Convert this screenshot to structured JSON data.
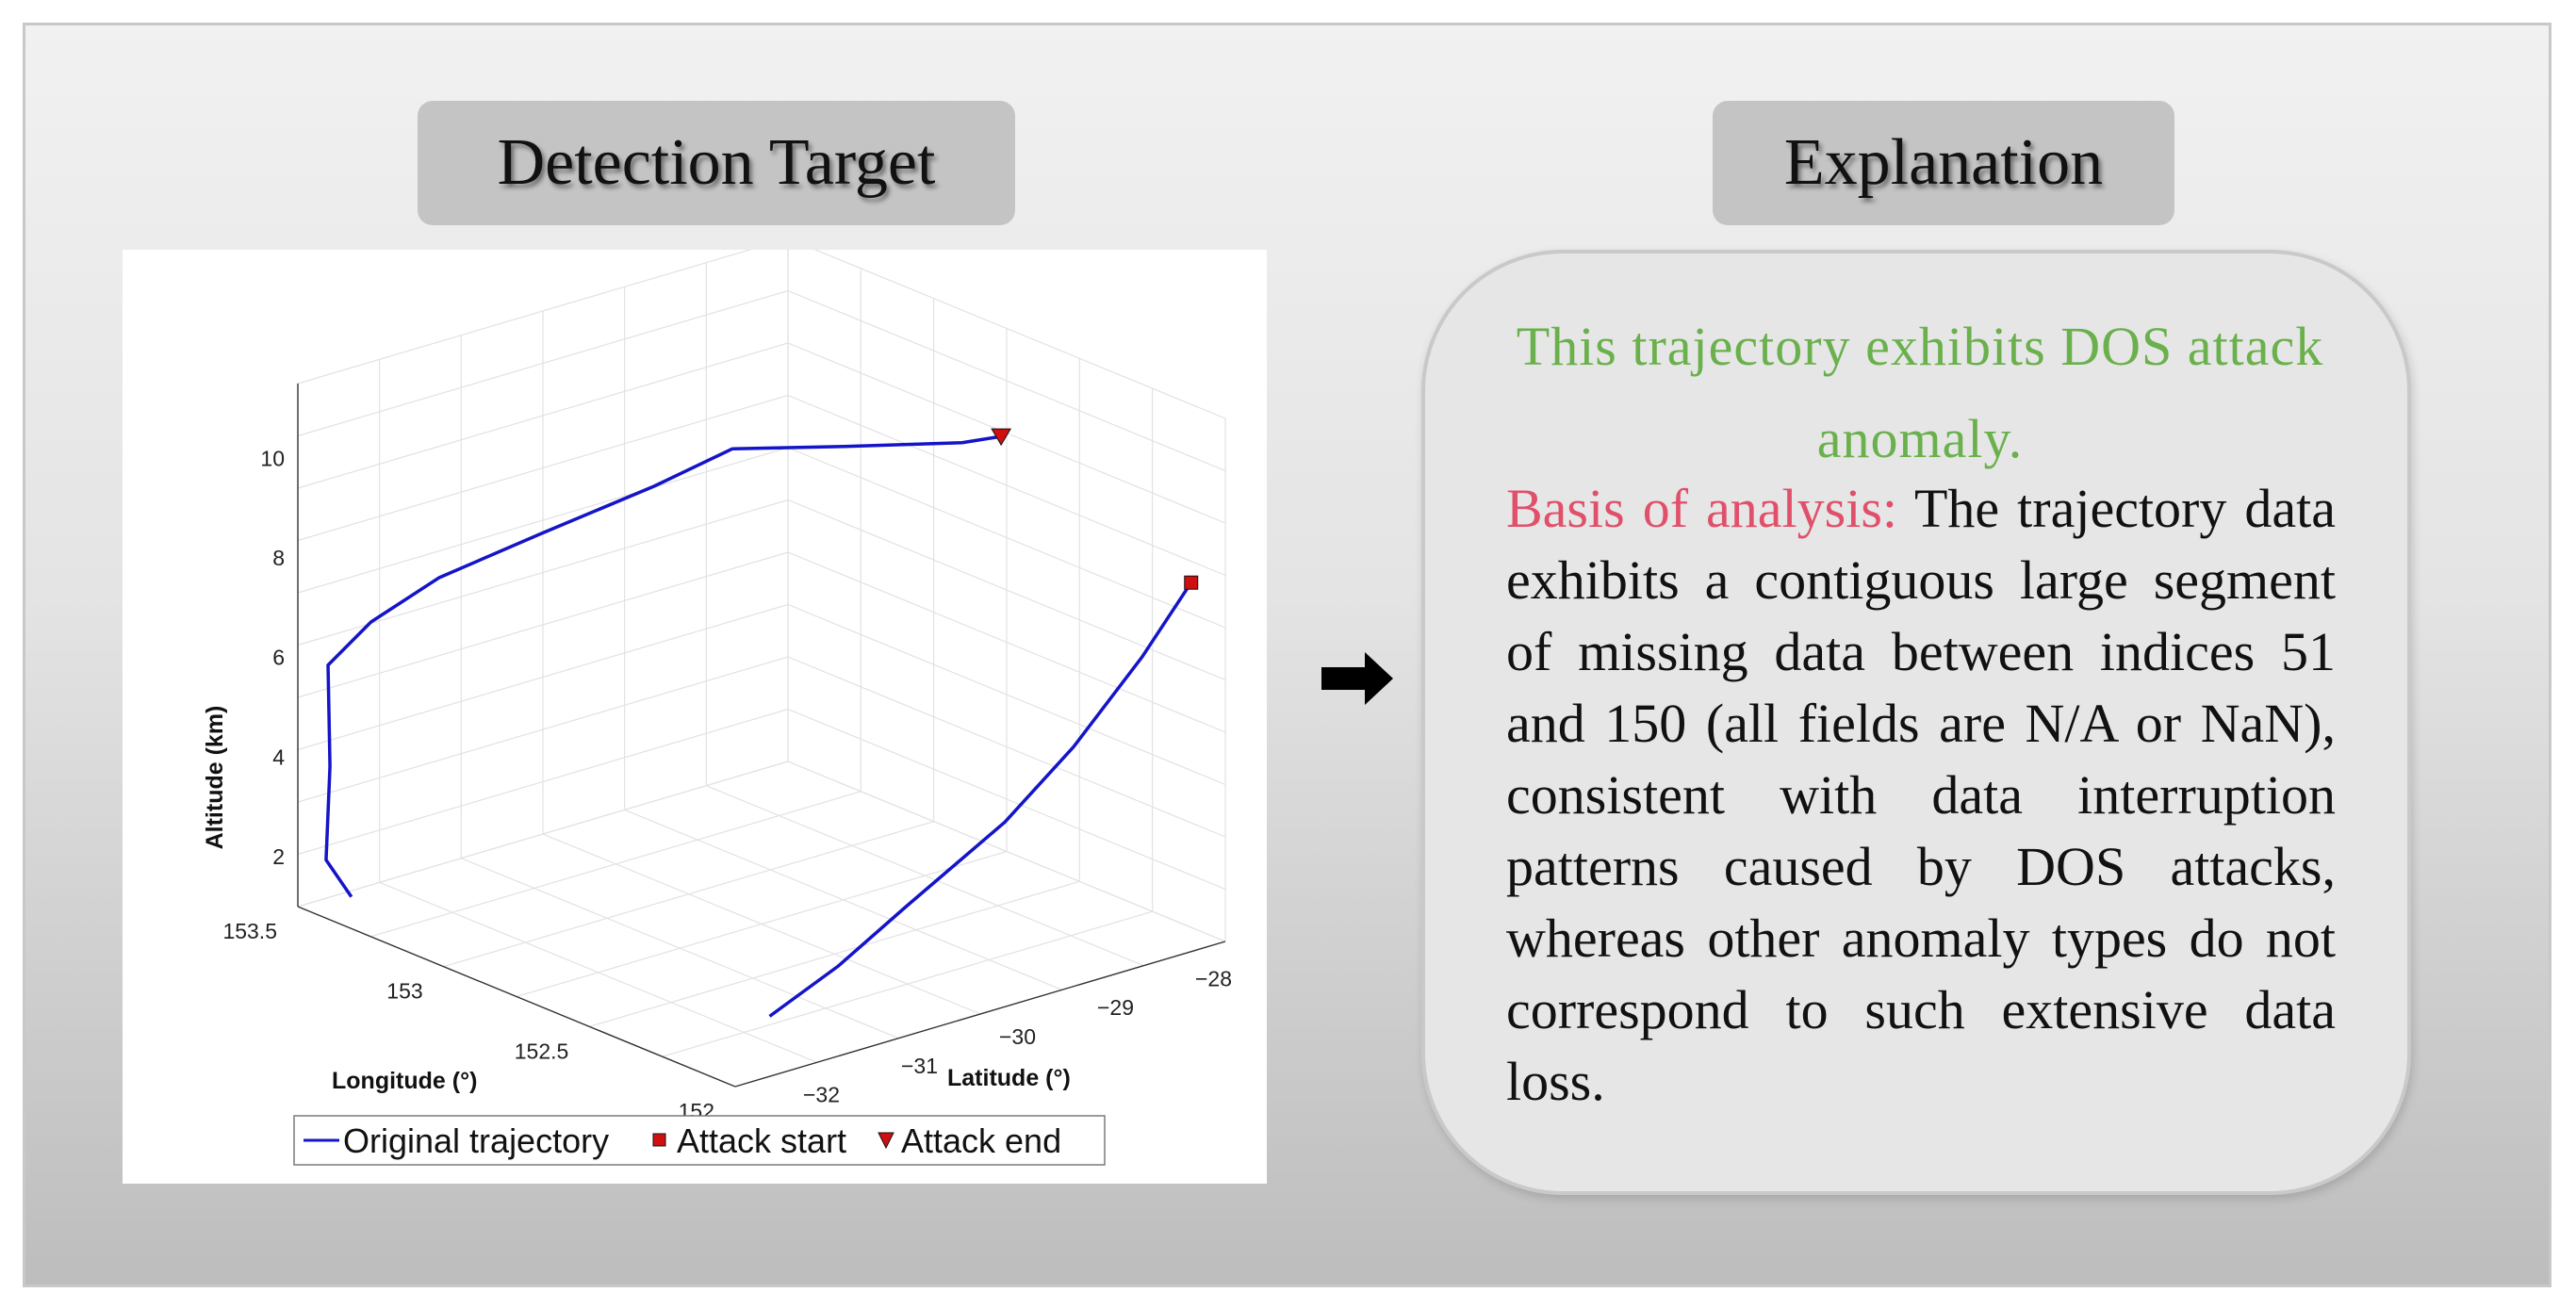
{
  "headers": {
    "left": "Detection Target",
    "right": "Explanation"
  },
  "chart_data": {
    "type": "line",
    "projection": "3d",
    "title": "",
    "xlabel": "Longitude (°)",
    "ylabel": "Latitude (°)",
    "zlabel": "Altitude (km)",
    "xlim": [
      152,
      153.5
    ],
    "ylim": [
      -32.5,
      -27.5
    ],
    "zlim": [
      1,
      11.5
    ],
    "x_ticks": [
      "152",
      "152.5",
      "153",
      "153.5"
    ],
    "y_ticks": [
      "−28",
      "−29",
      "−30",
      "−31",
      "−32"
    ],
    "z_ticks": [
      "2",
      "4",
      "6",
      "8",
      "10"
    ],
    "grid": true,
    "legend_location": "bottom",
    "series": [
      {
        "name": "Original trajectory",
        "color": "#1414c8",
        "segments": [
          [
            {
              "x": 153.35,
              "y": -32.4,
              "z": 1.5
            },
            {
              "x": 153.42,
              "y": -32.45,
              "z": 2.1
            },
            {
              "x": 153.41,
              "y": -32.44,
              "z": 4.0
            },
            {
              "x": 153.42,
              "y": -32.43,
              "z": 6.0
            },
            {
              "x": 153.35,
              "y": -32.2,
              "z": 6.9
            },
            {
              "x": 153.25,
              "y": -31.8,
              "z": 7.8
            },
            {
              "x": 153.1,
              "y": -31.2,
              "z": 8.7
            },
            {
              "x": 152.95,
              "y": -30.5,
              "z": 9.6
            },
            {
              "x": 152.85,
              "y": -30.0,
              "z": 10.3
            },
            {
              "x": 152.7,
              "y": -29.3,
              "z": 10.3
            },
            {
              "x": 152.55,
              "y": -28.55,
              "z": 10.3
            },
            {
              "x": 152.5,
              "y": -28.3,
              "z": 10.4
            }
          ],
          [
            {
              "x": 152.05,
              "y": -27.7,
              "z": 8.2
            },
            {
              "x": 152.05,
              "y": -28.2,
              "z": 7.0
            },
            {
              "x": 152.05,
              "y": -28.9,
              "z": 5.6
            },
            {
              "x": 152.05,
              "y": -29.6,
              "z": 4.5
            },
            {
              "x": 152.05,
              "y": -30.6,
              "z": 3.4
            },
            {
              "x": 152.05,
              "y": -31.3,
              "z": 2.6
            },
            {
              "x": 152.05,
              "y": -32.0,
              "z": 2.0
            }
          ]
        ]
      }
    ],
    "markers": [
      {
        "name": "Attack start",
        "shape": "square",
        "color": "#d01010",
        "x": 152.05,
        "y": -27.7,
        "z": 8.2
      },
      {
        "name": "Attack end",
        "shape": "triangle-down",
        "color": "#d01010",
        "x": 152.5,
        "y": -28.3,
        "z": 10.4
      }
    ]
  },
  "legend": {
    "items": [
      {
        "label": "Original trajectory",
        "symbol": "line",
        "color": "#1414c8"
      },
      {
        "label": "Attack start",
        "symbol": "square",
        "color": "#d01010"
      },
      {
        "label": "Attack end",
        "symbol": "triangle-down",
        "color": "#d01010"
      }
    ]
  },
  "arrow": {
    "icon": "right-arrow-icon"
  },
  "explanation": {
    "title": "This trajectory exhibits DOS attack anomaly.",
    "basis_label": "Basis of analysis:",
    "basis_text": " The trajectory data exhibits a contiguous large segment of missing data between indices 51 and 150 (all fields are N/A or NaN), consistent with data interruption patterns caused by DOS attacks, whereas other anomaly types do not correspond to such extensive data loss."
  },
  "colors": {
    "title_green": "#6ab04c",
    "basis_red": "#e0506a",
    "trajectory_blue": "#1414c8",
    "marker_red": "#d01010"
  }
}
